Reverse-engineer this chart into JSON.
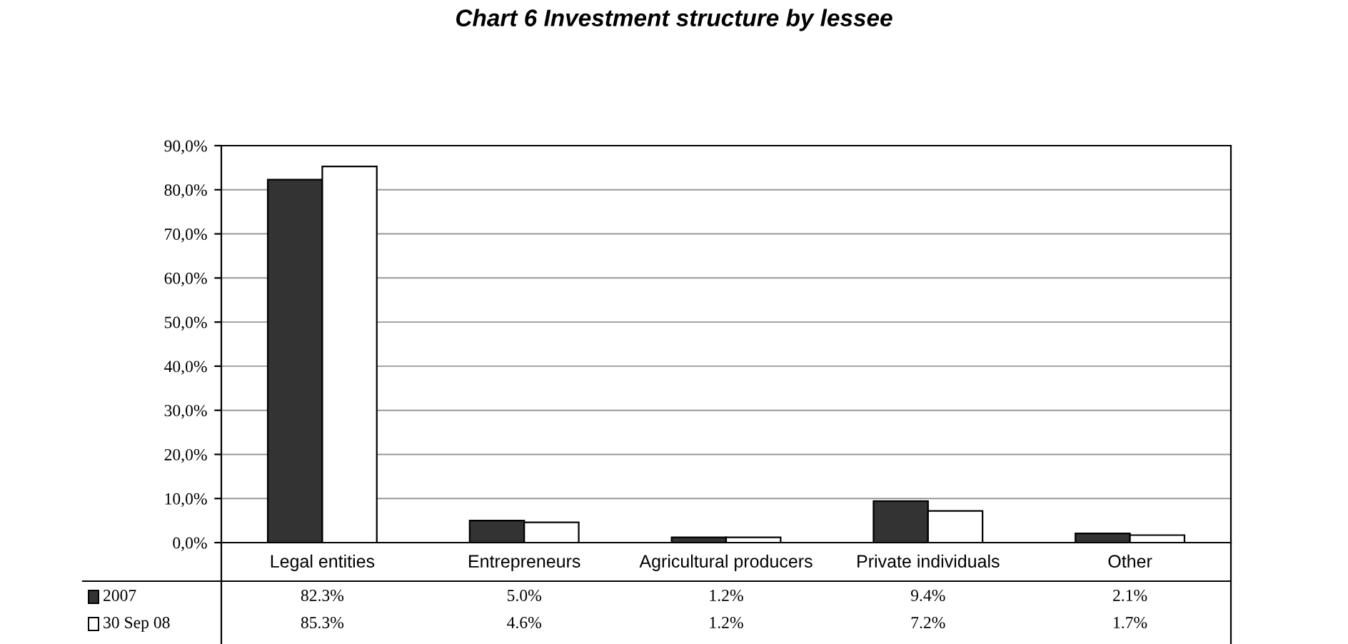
{
  "chart_data": {
    "type": "bar",
    "title": "Chart 6 Investment structure by lessee",
    "categories": [
      "Legal entities",
      "Entrepreneurs",
      "Agricultural producers",
      "Private individuals",
      "Other"
    ],
    "series": [
      {
        "name": "2007",
        "color": "#333333",
        "values": [
          82.3,
          5.0,
          1.2,
          9.4,
          2.1
        ],
        "value_labels": [
          "82.3%",
          "5.0%",
          "1.2%",
          "9.4%",
          "2.1%"
        ]
      },
      {
        "name": "30 Sep 08",
        "color": "#ffffff",
        "values": [
          85.3,
          4.6,
          1.2,
          7.2,
          1.7
        ],
        "value_labels": [
          "85.3%",
          "4.6%",
          "1.2%",
          "7.2%",
          "1.7%"
        ]
      }
    ],
    "ylim": [
      0,
      90
    ],
    "yticks": [
      {
        "value": 0,
        "label": "0,0%"
      },
      {
        "value": 10,
        "label": "10,0%"
      },
      {
        "value": 20,
        "label": "20,0%"
      },
      {
        "value": 30,
        "label": "30,0%"
      },
      {
        "value": 40,
        "label": "40,0%"
      },
      {
        "value": 50,
        "label": "50,0%"
      },
      {
        "value": 60,
        "label": "60,0%"
      },
      {
        "value": 70,
        "label": "70,0%"
      },
      {
        "value": 80,
        "label": "80,0%"
      },
      {
        "value": 90,
        "label": "90,0%"
      }
    ],
    "grid": "y",
    "legend": "bottom left"
  }
}
